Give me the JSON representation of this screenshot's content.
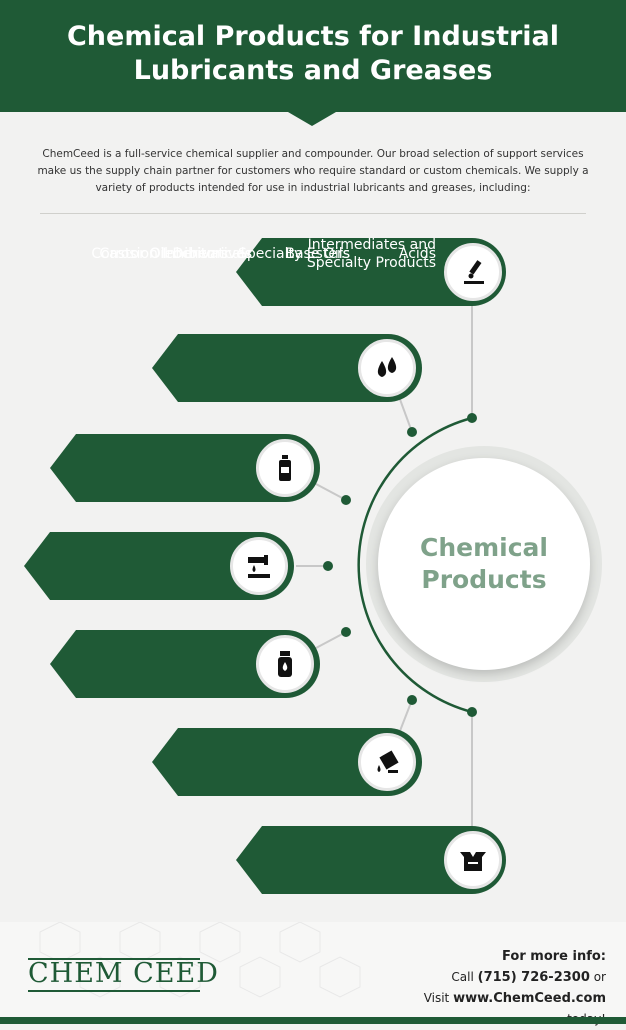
{
  "header": {
    "title_line1": "Chemical Products for Industrial",
    "title_line2": "Lubricants and Greases"
  },
  "intro": "ChemCeed is a full-service chemical supplier and compounder. Our broad selection of support services make us the supply chain partner for customers who require standard or custom chemicals. We supply a variety of products intended for use in industrial lubricants and greases, including:",
  "center": {
    "line1": "Chemical",
    "line2": "Products"
  },
  "items": [
    {
      "label": "Acids",
      "icon": "dropper-icon"
    },
    {
      "label": "Base Oils",
      "icon": "oil-drops-icon"
    },
    {
      "label": "Castor Oil Derivatives",
      "icon": "bottle-icon"
    },
    {
      "label": "Corrosion Inhibitors",
      "icon": "pipe-drip-icon"
    },
    {
      "label": "Oleochemicals",
      "icon": "jar-icon"
    },
    {
      "label": "Specialty Esters",
      "icon": "pouring-can-icon"
    },
    {
      "label_line1": "Intermediates and",
      "label_line2": "Specialty Products",
      "icon": "open-box-icon"
    }
  ],
  "footer": {
    "logo": "CHEM CEED",
    "more_info": "For more info:",
    "call_prefix": "Call",
    "phone": "(715) 726-2300",
    "call_suffix": "or",
    "visit_prefix": "Visit",
    "website": "www.ChemCeed.com",
    "visit_suffix": "today!"
  },
  "colors": {
    "brand_green": "#1f5a36",
    "center_text": "#7fa28a",
    "background": "#f2f2f1"
  }
}
